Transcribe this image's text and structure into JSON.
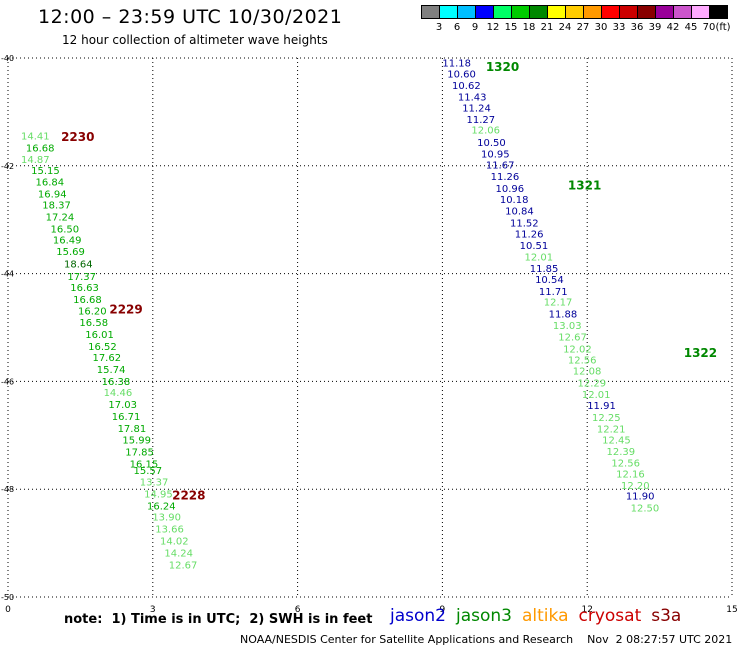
{
  "title": "12:00 – 23:59 UTC 10/30/2021",
  "subtitle": "12 hour collection of altimeter wave heights",
  "legend": {
    "unit": "(ft)",
    "levels": [
      {
        "label": "3",
        "color": "#808080"
      },
      {
        "label": "6",
        "color": "#00ffff"
      },
      {
        "label": "9",
        "color": "#00bfff"
      },
      {
        "label": "12",
        "color": "#0000ff"
      },
      {
        "label": "15",
        "color": "#00ff66"
      },
      {
        "label": "18",
        "color": "#00cc00"
      },
      {
        "label": "21",
        "color": "#008800"
      },
      {
        "label": "24",
        "color": "#ffff00"
      },
      {
        "label": "27",
        "color": "#ffcc00"
      },
      {
        "label": "30",
        "color": "#ff9900"
      },
      {
        "label": "33",
        "color": "#ff0000"
      },
      {
        "label": "36",
        "color": "#cc0000"
      },
      {
        "label": "39",
        "color": "#880000"
      },
      {
        "label": "42",
        "color": "#990099"
      },
      {
        "label": "45",
        "color": "#cc55cc"
      },
      {
        "label": "70",
        "color": "#ffaaff"
      },
      {
        "label": "",
        "color": "#000000"
      }
    ]
  },
  "note": "note:  1) Time is in UTC;  2) SWH is in feet",
  "missions": [
    {
      "name": "jason2",
      "color": "#0000cc"
    },
    {
      "name": "jason3",
      "color": "#008800"
    },
    {
      "name": "altika",
      "color": "#ff9900"
    },
    {
      "name": "cryosat",
      "color": "#cc0000"
    },
    {
      "name": "s3a",
      "color": "#880000"
    }
  ],
  "credit": "NOAA/NESDIS Center for Satellite Applications and Research    Nov  2 08:27:57 UTC 2021",
  "chart_data": {
    "type": "scatter",
    "xlim": [
      0,
      15
    ],
    "ylim": [
      -50,
      -40
    ],
    "xticks": [
      "0",
      "3",
      "6",
      "9",
      "12",
      "15"
    ],
    "yticks": [
      "-40",
      "-42",
      "-44",
      "-46",
      "-48",
      "-50"
    ],
    "grid": true,
    "tracks": [
      {
        "label": "2230",
        "label_x": 1.1,
        "label_y": -41.45,
        "label_color": "#880000",
        "points": [
          {
            "x": 0.27,
            "y": -41.44,
            "v": 14.41,
            "c": "#66dd66"
          },
          {
            "x": 0.37,
            "y": -41.66,
            "v": 16.68,
            "c": "#00aa00"
          },
          {
            "x": 0.27,
            "y": -41.87,
            "v": 14.87,
            "c": "#66dd66"
          },
          {
            "x": 0.48,
            "y": -42.08,
            "v": 15.15,
            "c": "#00aa00"
          },
          {
            "x": 0.57,
            "y": -42.29,
            "v": 16.84,
            "c": "#00aa00"
          },
          {
            "x": 0.62,
            "y": -42.51,
            "v": 16.94,
            "c": "#00aa00"
          },
          {
            "x": 0.71,
            "y": -42.72,
            "v": 18.37,
            "c": "#00aa00"
          },
          {
            "x": 0.78,
            "y": -42.94,
            "v": 17.24,
            "c": "#00aa00"
          },
          {
            "x": 0.88,
            "y": -43.16,
            "v": 16.5,
            "c": "#00aa00"
          },
          {
            "x": 0.93,
            "y": -43.37,
            "v": 16.49,
            "c": "#00aa00"
          },
          {
            "x": 1.0,
            "y": -43.58,
            "v": 15.69,
            "c": "#00aa00"
          },
          {
            "x": 1.16,
            "y": -43.81,
            "v": 18.64,
            "c": "#006600"
          },
          {
            "x": 1.23,
            "y": -44.04,
            "v": 17.37,
            "c": "#00aa00"
          },
          {
            "x": 1.29,
            "y": -44.25,
            "v": 16.63,
            "c": "#00aa00"
          }
        ]
      },
      {
        "label": "2229",
        "label_x": 2.1,
        "label_y": -44.65,
        "label_color": "#880000",
        "points": [
          {
            "x": 1.35,
            "y": -44.47,
            "v": 16.68,
            "c": "#00aa00"
          },
          {
            "x": 1.45,
            "y": -44.68,
            "v": 16.2,
            "c": "#00aa00"
          },
          {
            "x": 1.48,
            "y": -44.9,
            "v": 16.58,
            "c": "#00aa00"
          },
          {
            "x": 1.6,
            "y": -45.12,
            "v": 16.01,
            "c": "#00aa00"
          },
          {
            "x": 1.66,
            "y": -45.34,
            "v": 16.52,
            "c": "#00aa00"
          },
          {
            "x": 1.75,
            "y": -45.55,
            "v": 17.62,
            "c": "#00aa00"
          },
          {
            "x": 1.84,
            "y": -45.77,
            "v": 15.74,
            "c": "#00aa00"
          },
          {
            "x": 1.94,
            "y": -45.99,
            "v": 16.38,
            "c": "#00aa00"
          },
          {
            "x": 1.98,
            "y": -46.2,
            "v": 14.46,
            "c": "#66dd66"
          },
          {
            "x": 2.08,
            "y": -46.42,
            "v": 17.03,
            "c": "#00aa00"
          },
          {
            "x": 2.15,
            "y": -46.64,
            "v": 16.71,
            "c": "#00aa00"
          },
          {
            "x": 2.27,
            "y": -46.86,
            "v": 17.81,
            "c": "#00aa00"
          },
          {
            "x": 2.37,
            "y": -47.08,
            "v": 15.99,
            "c": "#00aa00"
          },
          {
            "x": 2.43,
            "y": -47.3,
            "v": 17.85,
            "c": "#00aa00"
          }
        ]
      },
      {
        "label": "2228",
        "label_x": 3.4,
        "label_y": -48.1,
        "label_color": "#880000",
        "points": [
          {
            "x": 2.52,
            "y": -47.52,
            "v": 16.15,
            "c": "#00aa00"
          },
          {
            "x": 2.6,
            "y": -47.64,
            "v": 15.57,
            "c": "#00aa00"
          },
          {
            "x": 2.73,
            "y": -47.86,
            "v": 13.37,
            "c": "#66dd66"
          },
          {
            "x": 2.82,
            "y": -48.08,
            "v": 14.95,
            "c": "#66dd66"
          },
          {
            "x": 2.88,
            "y": -48.3,
            "v": 16.24,
            "c": "#00aa00"
          },
          {
            "x": 2.99,
            "y": -48.51,
            "v": 13.9,
            "c": "#66dd66"
          },
          {
            "x": 3.05,
            "y": -48.73,
            "v": 13.66,
            "c": "#66dd66"
          },
          {
            "x": 3.15,
            "y": -48.95,
            "v": 14.02,
            "c": "#66dd66"
          },
          {
            "x": 3.24,
            "y": -49.17,
            "v": 14.24,
            "c": "#66dd66"
          },
          {
            "x": 3.33,
            "y": -49.4,
            "v": 12.67,
            "c": "#66dd66"
          }
        ]
      },
      {
        "label": "1320",
        "label_x": 9.9,
        "label_y": -40.15,
        "label_color": "#008800",
        "points": [
          {
            "x": 9.0,
            "y": -40.08,
            "v": 11.18,
            "c": "#000099"
          },
          {
            "x": 9.1,
            "y": -40.29,
            "v": 10.6,
            "c": "#000099"
          },
          {
            "x": 9.2,
            "y": -40.5,
            "v": 10.62,
            "c": "#000099"
          },
          {
            "x": 9.32,
            "y": -40.71,
            "v": 11.43,
            "c": "#000099"
          },
          {
            "x": 9.41,
            "y": -40.92,
            "v": 11.24,
            "c": "#000099"
          },
          {
            "x": 9.5,
            "y": -41.13,
            "v": 11.27,
            "c": "#000099"
          },
          {
            "x": 9.6,
            "y": -41.33,
            "v": 12.06,
            "c": "#66dd66"
          },
          {
            "x": 9.72,
            "y": -41.56,
            "v": 10.5,
            "c": "#000099"
          },
          {
            "x": 9.8,
            "y": -41.77,
            "v": 10.95,
            "c": "#000099"
          },
          {
            "x": 9.9,
            "y": -41.98,
            "v": 11.67,
            "c": "#000099"
          },
          {
            "x": 10.0,
            "y": -42.19,
            "v": 11.26,
            "c": "#000099"
          },
          {
            "x": 10.1,
            "y": -42.41,
            "v": 10.96,
            "c": "#000099"
          },
          {
            "x": 10.19,
            "y": -42.62,
            "v": 10.18,
            "c": "#000099"
          },
          {
            "x": 10.3,
            "y": -42.83,
            "v": 10.84,
            "c": "#000099"
          }
        ]
      },
      {
        "label": "1321",
        "label_x": 11.6,
        "label_y": -42.35,
        "label_color": "#008800",
        "points": [
          {
            "x": 10.4,
            "y": -43.05,
            "v": 11.52,
            "c": "#000099"
          },
          {
            "x": 10.5,
            "y": -43.26,
            "v": 11.26,
            "c": "#000099"
          },
          {
            "x": 10.6,
            "y": -43.47,
            "v": 10.51,
            "c": "#000099"
          },
          {
            "x": 10.7,
            "y": -43.68,
            "v": 12.01,
            "c": "#66dd66"
          },
          {
            "x": 10.81,
            "y": -43.9,
            "v": 11.85,
            "c": "#000099"
          },
          {
            "x": 10.92,
            "y": -44.1,
            "v": 10.54,
            "c": "#000099"
          },
          {
            "x": 11.0,
            "y": -44.32,
            "v": 11.71,
            "c": "#000099"
          },
          {
            "x": 11.1,
            "y": -44.52,
            "v": 12.17,
            "c": "#66dd66"
          },
          {
            "x": 11.2,
            "y": -44.74,
            "v": 11.88,
            "c": "#000099"
          },
          {
            "x": 11.29,
            "y": -44.95,
            "v": 13.03,
            "c": "#66dd66"
          },
          {
            "x": 11.4,
            "y": -45.17,
            "v": 12.67,
            "c": "#66dd66"
          },
          {
            "x": 11.5,
            "y": -45.39,
            "v": 12.02,
            "c": "#66dd66"
          },
          {
            "x": 11.6,
            "y": -45.59,
            "v": 12.56,
            "c": "#66dd66"
          },
          {
            "x": 11.7,
            "y": -45.8,
            "v": 12.08,
            "c": "#66dd66"
          }
        ]
      },
      {
        "label": "1322",
        "label_x": 14.0,
        "label_y": -45.45,
        "label_color": "#008800",
        "points": [
          {
            "x": 11.8,
            "y": -46.02,
            "v": 12.29,
            "c": "#66dd66"
          },
          {
            "x": 11.89,
            "y": -46.23,
            "v": 12.01,
            "c": "#66dd66"
          },
          {
            "x": 12.0,
            "y": -46.44,
            "v": 11.91,
            "c": "#000099"
          },
          {
            "x": 12.1,
            "y": -46.66,
            "v": 12.25,
            "c": "#66dd66"
          },
          {
            "x": 12.2,
            "y": -46.87,
            "v": 12.21,
            "c": "#66dd66"
          },
          {
            "x": 12.31,
            "y": -47.08,
            "v": 12.45,
            "c": "#66dd66"
          },
          {
            "x": 12.4,
            "y": -47.29,
            "v": 12.39,
            "c": "#66dd66"
          },
          {
            "x": 12.5,
            "y": -47.5,
            "v": 12.56,
            "c": "#66dd66"
          },
          {
            "x": 12.6,
            "y": -47.71,
            "v": 12.16,
            "c": "#66dd66"
          },
          {
            "x": 12.7,
            "y": -47.92,
            "v": 12.2,
            "c": "#66dd66"
          },
          {
            "x": 12.8,
            "y": -48.12,
            "v": 11.9,
            "c": "#000099"
          },
          {
            "x": 12.9,
            "y": -48.34,
            "v": 12.5,
            "c": "#66dd66"
          }
        ]
      }
    ]
  }
}
